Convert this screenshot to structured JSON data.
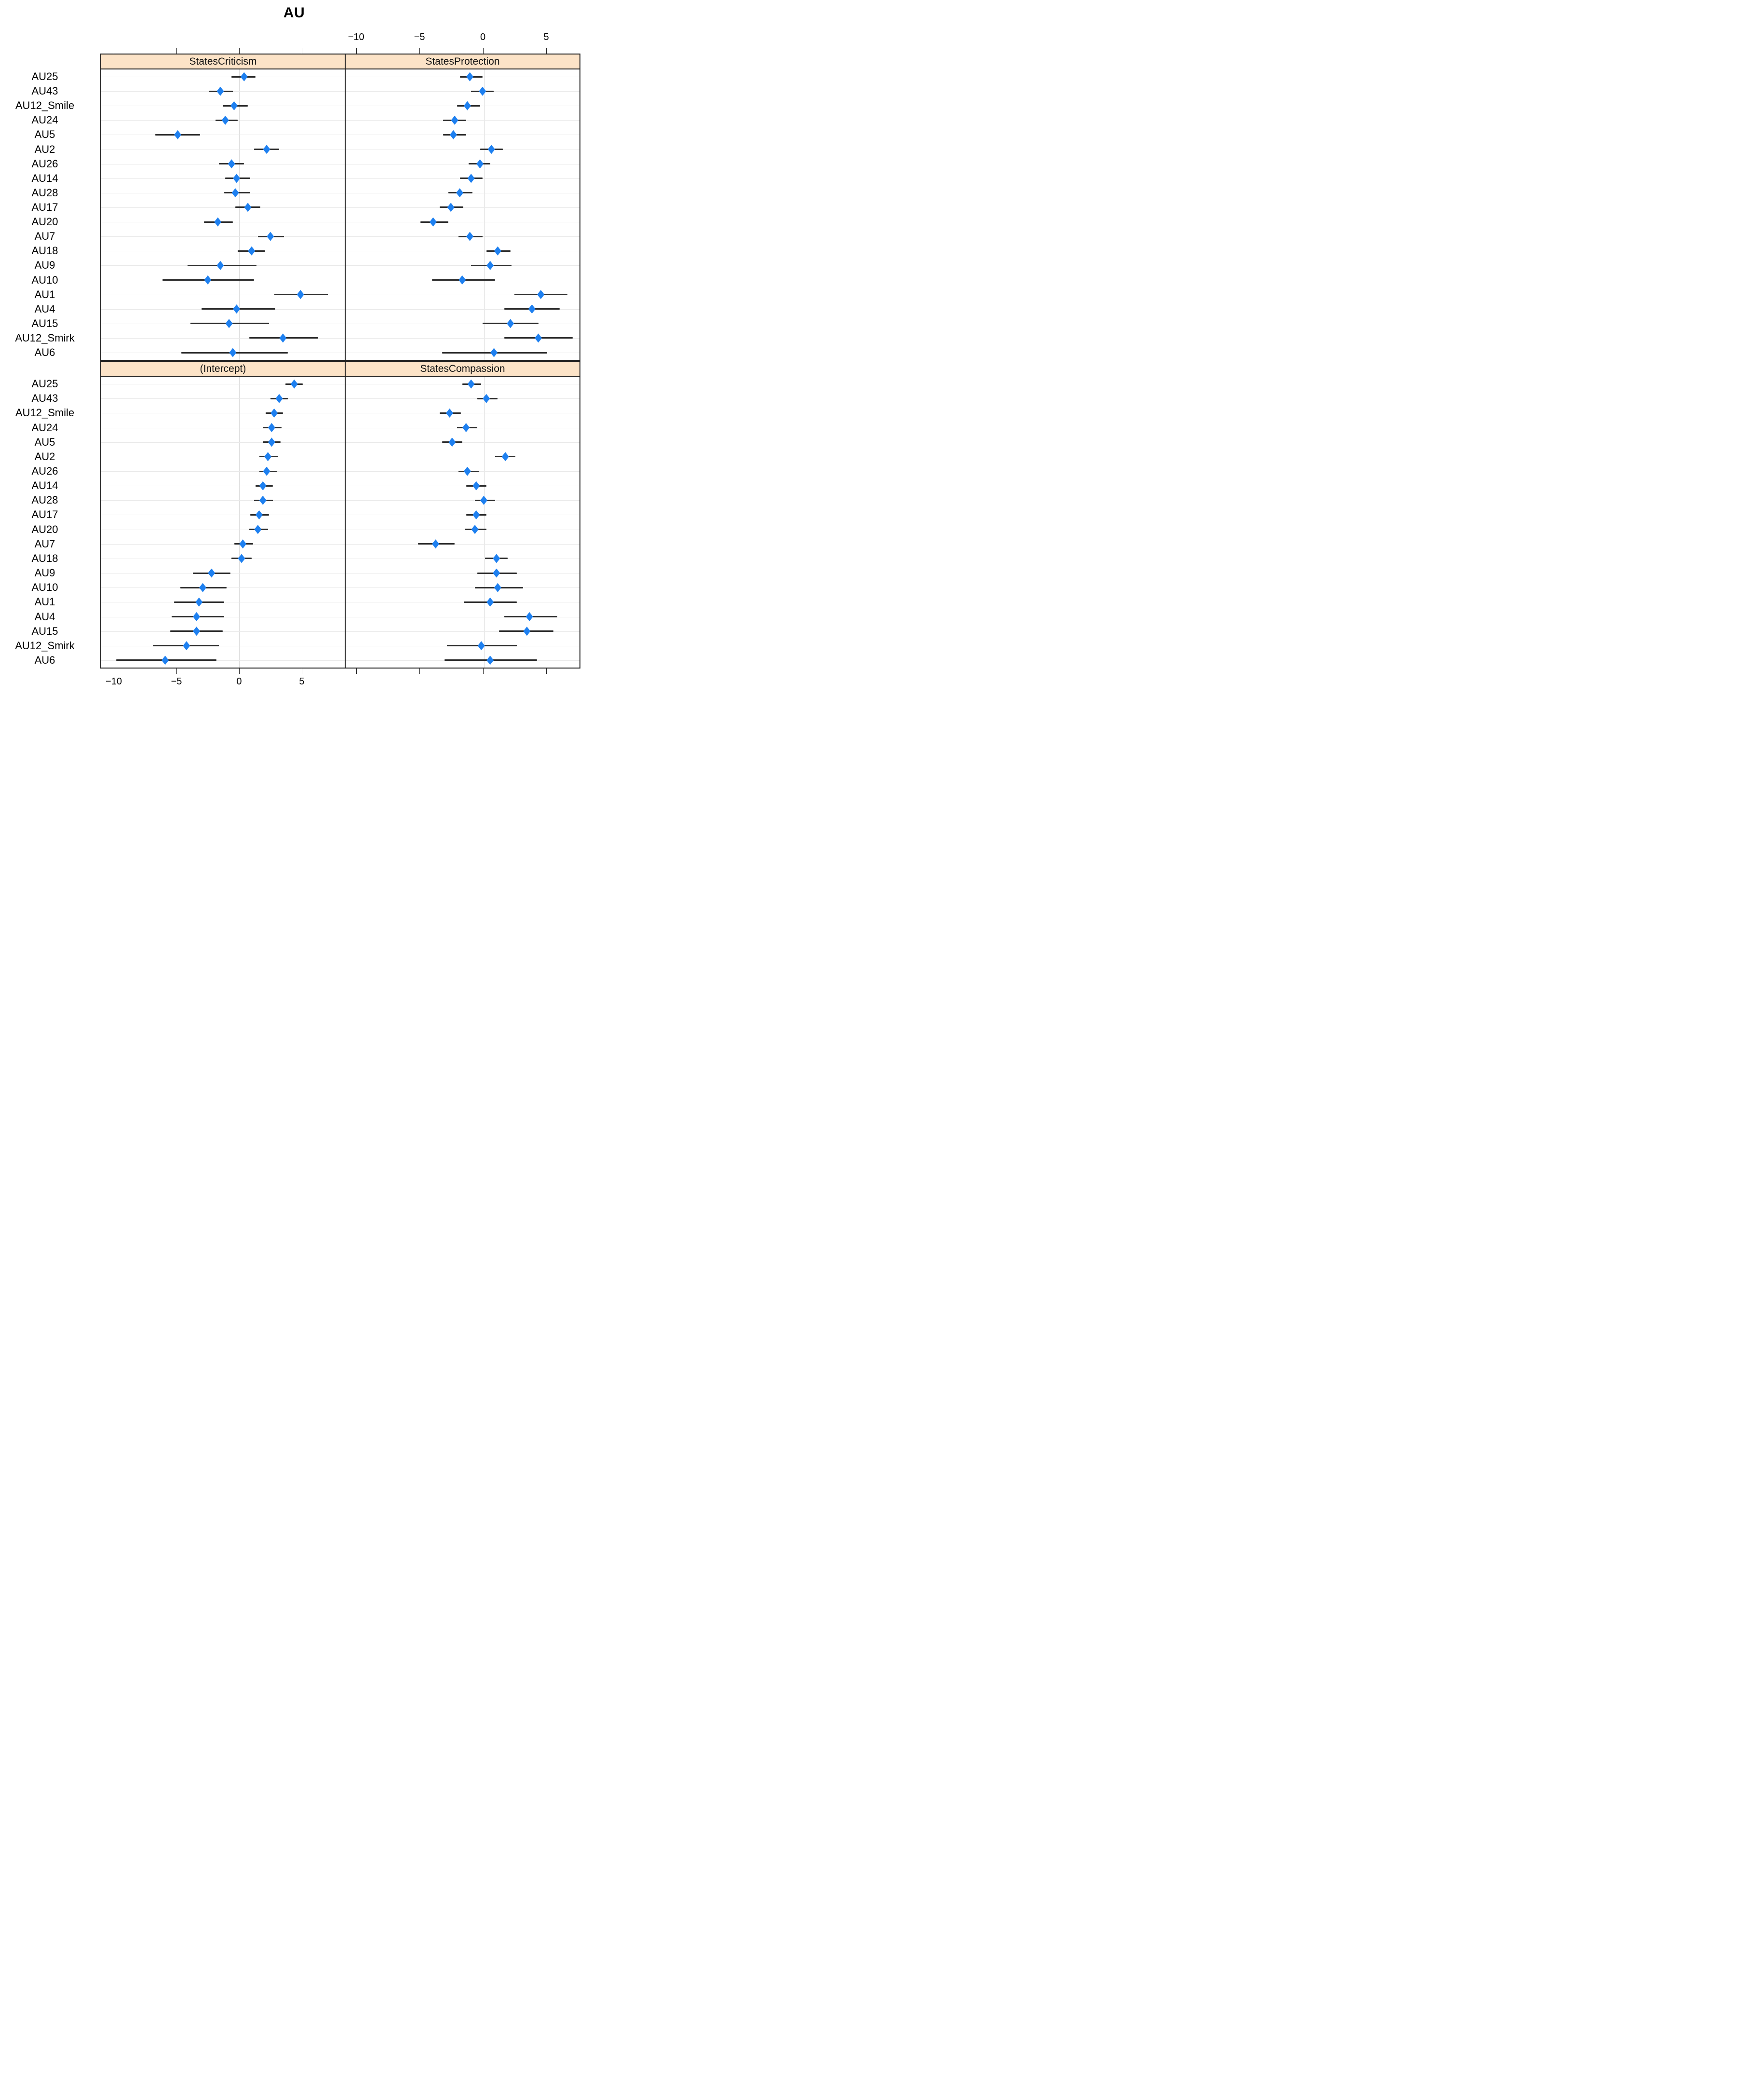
{
  "title": "AU",
  "colors": {
    "point_fill": "#1e80f0",
    "ci_line": "#2e2e2e",
    "panel_border": "#1f1f1f",
    "header_fill": "#fce3c7",
    "gridline": "#e9e9e9",
    "zero_line": "#d9d9d9",
    "text": "#000000"
  },
  "axis": {
    "ticks": [
      -10,
      -5,
      0,
      5
    ],
    "tick_labels": [
      "−10",
      "−5",
      "0",
      "5"
    ],
    "top_labels_over": "right-panels",
    "bottom_labels_under": "left-panels"
  },
  "chart_data": {
    "type": "scatter",
    "subtype": "dotplot-with-error-bars",
    "title": "AU",
    "marker": "diamond",
    "legend": "none",
    "grid": "light horizontal line per category; light vertical reference line at 0",
    "x_ticks": [
      -10,
      -5,
      0,
      5
    ],
    "x_range_left_panels": {
      "min": -11.0,
      "max": 8.35
    },
    "x_range_right_panels": {
      "min": -10.9,
      "max": 7.55
    },
    "categories_top_to_bottom": [
      "AU25",
      "AU43",
      "AU12_Smile",
      "AU24",
      "AU5",
      "AU2",
      "AU26",
      "AU14",
      "AU28",
      "AU17",
      "AU20",
      "AU7",
      "AU18",
      "AU9",
      "AU10",
      "AU1",
      "AU4",
      "AU15",
      "AU12_Smirk",
      "AU6"
    ],
    "panels": [
      {
        "title": "StatesCriticism",
        "position": "top-left",
        "estimates": [
          0.4,
          -1.5,
          -0.4,
          -1.1,
          -4.9,
          2.2,
          -0.6,
          -0.2,
          -0.3,
          0.7,
          -1.7,
          2.5,
          1.0,
          -1.5,
          -2.5,
          4.9,
          -0.2,
          -0.8,
          3.5,
          -0.5
        ],
        "ci_low": [
          -0.6,
          -2.4,
          -1.3,
          -1.9,
          -6.7,
          1.2,
          -1.6,
          -1.1,
          -1.2,
          -0.3,
          -2.8,
          1.5,
          -0.1,
          -4.1,
          -6.1,
          2.8,
          -3.0,
          -3.9,
          0.8,
          -4.6
        ],
        "ci_high": [
          1.3,
          -0.5,
          0.7,
          -0.1,
          -3.1,
          3.2,
          0.4,
          0.9,
          0.9,
          1.7,
          -0.5,
          3.6,
          2.1,
          1.4,
          1.2,
          7.1,
          2.9,
          2.4,
          6.3,
          3.9
        ]
      },
      {
        "title": "StatesProtection",
        "position": "top-right",
        "estimates": [
          -1.1,
          -0.1,
          -1.3,
          -2.3,
          -2.4,
          0.6,
          -0.3,
          -1.0,
          -1.9,
          -2.6,
          -4.0,
          -1.1,
          1.1,
          0.5,
          -1.7,
          4.5,
          3.8,
          2.1,
          4.3,
          0.8
        ],
        "ci_low": [
          -1.9,
          -1.0,
          -2.1,
          -3.2,
          -3.2,
          -0.3,
          -1.2,
          -1.9,
          -2.8,
          -3.5,
          -5.0,
          -2.0,
          0.2,
          -1.0,
          -4.1,
          2.4,
          1.6,
          -0.1,
          1.6,
          -3.3
        ],
        "ci_high": [
          -0.1,
          0.8,
          -0.3,
          -1.4,
          -1.4,
          1.5,
          0.5,
          -0.1,
          -0.9,
          -1.6,
          -2.8,
          -0.1,
          2.1,
          2.2,
          0.9,
          6.6,
          6.0,
          4.3,
          7.0,
          5.0
        ]
      },
      {
        "title": "(Intercept)",
        "position": "bottom-left",
        "estimates": [
          4.4,
          3.2,
          2.8,
          2.6,
          2.6,
          2.3,
          2.2,
          1.9,
          1.9,
          1.6,
          1.5,
          0.3,
          0.2,
          -2.2,
          -2.9,
          -3.2,
          -3.4,
          -3.4,
          -4.2,
          -5.9
        ],
        "ci_low": [
          3.7,
          2.5,
          2.1,
          1.9,
          1.9,
          1.6,
          1.6,
          1.3,
          1.2,
          0.9,
          0.8,
          -0.4,
          -0.6,
          -3.7,
          -4.7,
          -5.2,
          -5.4,
          -5.5,
          -6.9,
          -9.8
        ],
        "ci_high": [
          5.1,
          3.9,
          3.5,
          3.4,
          3.3,
          3.1,
          3.0,
          2.7,
          2.7,
          2.4,
          2.3,
          1.1,
          1.0,
          -0.7,
          -1.0,
          -1.2,
          -1.2,
          -1.3,
          -1.6,
          -1.8
        ]
      },
      {
        "title": "StatesCompassion",
        "position": "bottom-right",
        "estimates": [
          -1.0,
          0.2,
          -2.7,
          -1.4,
          -2.5,
          1.7,
          -1.3,
          -0.6,
          0.0,
          -0.6,
          -0.7,
          -3.8,
          1.0,
          1.0,
          1.1,
          0.5,
          3.6,
          3.4,
          -0.2,
          0.5
        ],
        "ci_low": [
          -1.7,
          -0.5,
          -3.5,
          -2.1,
          -3.3,
          0.9,
          -2.0,
          -1.4,
          -0.7,
          -1.4,
          -1.5,
          -5.2,
          0.1,
          -0.5,
          -0.7,
          -1.6,
          1.6,
          1.2,
          -2.9,
          -3.1
        ],
        "ci_high": [
          -0.2,
          1.1,
          -1.8,
          -0.5,
          -1.7,
          2.5,
          -0.4,
          0.2,
          0.9,
          0.2,
          0.2,
          -2.3,
          1.9,
          2.6,
          3.1,
          2.6,
          5.8,
          5.5,
          2.6,
          4.2
        ]
      }
    ]
  }
}
